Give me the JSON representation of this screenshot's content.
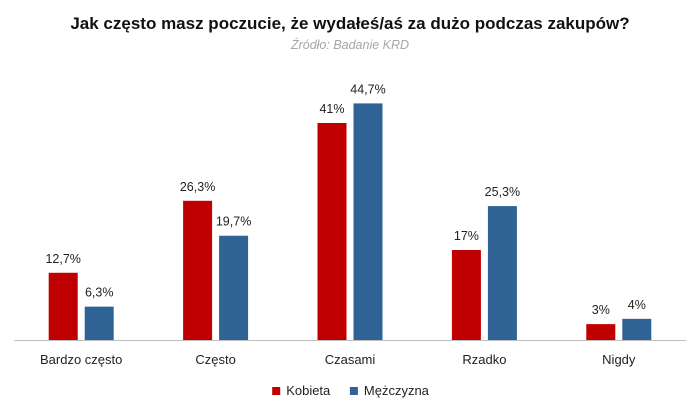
{
  "chart_data": {
    "type": "bar",
    "title": "Jak często masz poczucie, że wydałeś/aś za dużo podczas zakupów?",
    "subtitle": "Źródło: Badanie KRD",
    "categories": [
      "Bardzo często",
      "Często",
      "Czasami",
      "Rzadko",
      "Nigdy"
    ],
    "series": [
      {
        "name": "Kobieta",
        "color": "#c00000",
        "values": [
          12.7,
          26.3,
          41,
          17,
          3
        ],
        "labels": [
          "12,7%",
          "26,3%",
          "41%",
          "17%",
          "3%"
        ]
      },
      {
        "name": "Mężczyzna",
        "color": "#2f6395",
        "values": [
          6.3,
          19.7,
          44.7,
          25.3,
          4
        ],
        "labels": [
          "6,3%",
          "19,7%",
          "44,7%",
          "25,3%",
          "4%"
        ]
      }
    ],
    "ylim": [
      0,
      50
    ],
    "grid": false,
    "legend_position": "bottom"
  }
}
